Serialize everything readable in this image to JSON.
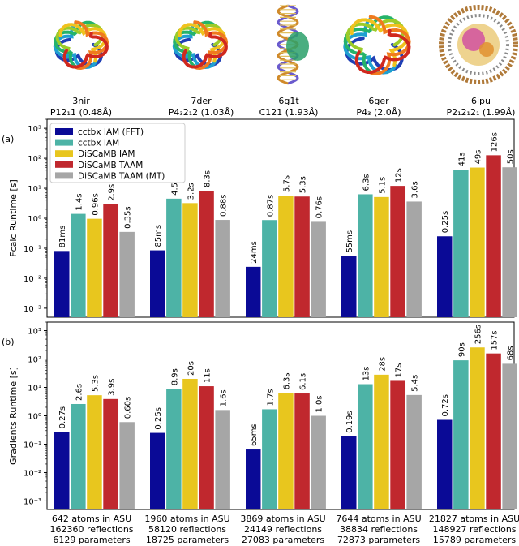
{
  "structures": [
    {
      "id": "3nir",
      "space_group": "P12₁1 (0.48Å)",
      "icon": "protein-structure-icon"
    },
    {
      "id": "7der",
      "space_group": "P4₃2₁2 (1.03Å)",
      "icon": "protein-structure-icon"
    },
    {
      "id": "6g1t",
      "space_group": "C121 (1.93Å)",
      "icon": "dna-protein-structure-icon"
    },
    {
      "id": "6ger",
      "space_group": "P4₃ (2.0Å)",
      "icon": "protein-structure-icon"
    },
    {
      "id": "6ipu",
      "space_group": "P2₁2₁2₁ (1.99Å)",
      "icon": "nucleosome-structure-icon"
    }
  ],
  "colors": {
    "cctbx IAM (FFT)": "#0a0a96",
    "cctbx IAM": "#4db3a6",
    "DiSCaMB IAM": "#e8c61e",
    "DiSCaMB TAAM": "#c0282e",
    "DiSCaMB TAAM (MT)": "#a6a6a6"
  },
  "x_group_labels": [
    [
      "642 atoms in ASU",
      "162360 reflections",
      "6129 parameters"
    ],
    [
      "1960 atoms in ASU",
      "58120 reflections",
      "18725 parameters"
    ],
    [
      "3869 atoms in ASU",
      "24149 reflections",
      "27083 parameters"
    ],
    [
      "7644 atoms in ASU",
      "38834 reflections",
      "72873 parameters"
    ],
    [
      "21827 atoms in ASU",
      "148927 reflections",
      "15789 parameters"
    ]
  ],
  "chart_data": [
    {
      "type": "bar",
      "panel_label": "(a)",
      "ylabel": "Fcalc Runtime [s]",
      "yscale": "log",
      "ylim": [
        0.0005,
        2000
      ],
      "yticks": [
        "10⁻³",
        "10⁻²",
        "10⁻¹",
        "10⁰",
        "10¹",
        "10²",
        "10³"
      ],
      "legend": "top-left",
      "categories": [
        "3nir",
        "7der",
        "6g1t",
        "6ger",
        "6ipu"
      ],
      "series": [
        {
          "name": "cctbx IAM (FFT)",
          "values": [
            0.081,
            0.085,
            0.024,
            0.055,
            0.25
          ],
          "labels": [
            "81ms",
            "85ms",
            "24ms",
            "55ms",
            "0.25s"
          ]
        },
        {
          "name": "cctbx IAM",
          "values": [
            1.4,
            4.5,
            0.87,
            6.3,
            41
          ],
          "labels": [
            "1.4s",
            "4.5s",
            "0.87s",
            "6.3s",
            "41s"
          ]
        },
        {
          "name": "DiSCaMB IAM",
          "values": [
            0.96,
            3.2,
            5.7,
            5.1,
            49
          ],
          "labels": [
            "0.96s",
            "3.2s",
            "5.7s",
            "5.1s",
            "49s"
          ]
        },
        {
          "name": "DiSCaMB TAAM",
          "values": [
            2.9,
            8.3,
            5.3,
            12,
            126
          ],
          "labels": [
            "2.9s",
            "8.3s",
            "5.3s",
            "12s",
            "126s"
          ]
        },
        {
          "name": "DiSCaMB TAAM (MT)",
          "values": [
            0.35,
            0.88,
            0.76,
            3.6,
            50
          ],
          "labels": [
            "0.35s",
            "0.88s",
            "0.76s",
            "3.6s",
            "50s"
          ]
        }
      ]
    },
    {
      "type": "bar",
      "panel_label": "(b)",
      "ylabel": "Gradients Runtime [s]",
      "yscale": "log",
      "ylim": [
        0.0005,
        2000
      ],
      "yticks": [
        "10⁻³",
        "10⁻²",
        "10⁻¹",
        "10⁰",
        "10¹",
        "10²",
        "10³"
      ],
      "categories": [
        "3nir",
        "7der",
        "6g1t",
        "6ger",
        "6ipu"
      ],
      "series": [
        {
          "name": "cctbx IAM (FFT)",
          "values": [
            0.27,
            0.25,
            0.065,
            0.19,
            0.72
          ],
          "labels": [
            "0.27s",
            "0.25s",
            "65ms",
            "0.19s",
            "0.72s"
          ]
        },
        {
          "name": "cctbx IAM",
          "values": [
            2.6,
            8.9,
            1.7,
            13,
            90
          ],
          "labels": [
            "2.6s",
            "8.9s",
            "1.7s",
            "13s",
            "90s"
          ]
        },
        {
          "name": "DiSCaMB IAM",
          "values": [
            5.3,
            20,
            6.3,
            28,
            256
          ],
          "labels": [
            "5.3s",
            "20s",
            "6.3s",
            "28s",
            "256s"
          ]
        },
        {
          "name": "DiSCaMB TAAM",
          "values": [
            3.9,
            11,
            6.1,
            17,
            157
          ],
          "labels": [
            "3.9s",
            "11s",
            "6.1s",
            "17s",
            "157s"
          ]
        },
        {
          "name": "DiSCaMB TAAM (MT)",
          "values": [
            0.6,
            1.6,
            1.0,
            5.4,
            68
          ],
          "labels": [
            "0.60s",
            "1.6s",
            "1.0s",
            "5.4s",
            "68s"
          ]
        }
      ]
    }
  ]
}
